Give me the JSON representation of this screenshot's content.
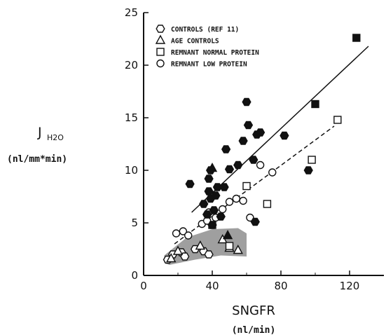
{
  "chart_data": {
    "type": "scatter",
    "title": "",
    "xlabel": "SNGFR",
    "xlabel_units": "(nl/min)",
    "ylabel_main": "J",
    "ylabel_sub": "H2O",
    "ylabel_units": "(nl/mm*min)",
    "xlim": [
      0,
      140
    ],
    "ylim": [
      0,
      25
    ],
    "x_ticks": [
      0,
      40,
      80,
      120
    ],
    "y_ticks": [
      0,
      5,
      10,
      15,
      20,
      25
    ],
    "grid": false,
    "legend_position": "top-left",
    "series": [
      {
        "name": "CONTROLS (REF 11)",
        "marker": "open-hexagon",
        "points": [
          [
            14,
            1.5
          ],
          [
            17,
            2.0
          ],
          [
            22,
            2.2
          ],
          [
            30,
            2.5
          ],
          [
            35,
            2.3
          ],
          [
            38,
            2.0
          ],
          [
            24,
            1.8
          ]
        ]
      },
      {
        "name": "AGE CONTROLS",
        "marker": "open-triangle",
        "points": [
          [
            20,
            2.3
          ],
          [
            33,
            2.8
          ],
          [
            46,
            3.4
          ],
          [
            50,
            2.6
          ],
          [
            55,
            2.4
          ],
          [
            16,
            1.6
          ]
        ]
      },
      {
        "name": "REMNANT NORMAL PROTEIN",
        "marker": "open-square",
        "points": [
          [
            40,
            4.8
          ],
          [
            50,
            2.8
          ],
          [
            60,
            8.5
          ],
          [
            72,
            6.8
          ],
          [
            98,
            11.0
          ],
          [
            113,
            14.8
          ]
        ]
      },
      {
        "name": "REMNANT LOW PROTEIN",
        "marker": "open-circle",
        "points": [
          [
            19,
            4.0
          ],
          [
            23,
            4.2
          ],
          [
            26,
            3.8
          ],
          [
            34,
            4.9
          ],
          [
            37,
            5.2
          ],
          [
            38,
            6.0
          ],
          [
            42,
            5.5
          ],
          [
            46,
            6.3
          ],
          [
            50,
            7.0
          ],
          [
            54,
            7.3
          ],
          [
            58,
            7.1
          ],
          [
            62,
            5.5
          ],
          [
            68,
            10.5
          ],
          [
            75,
            9.8
          ]
        ]
      },
      {
        "name": "",
        "marker": "filled-hexagon",
        "points": [
          [
            27,
            8.7
          ],
          [
            35,
            6.8
          ],
          [
            37,
            5.8
          ],
          [
            38,
            8.0
          ],
          [
            38,
            9.2
          ],
          [
            39,
            7.3
          ],
          [
            39,
            10.0
          ],
          [
            40,
            4.8
          ],
          [
            41,
            6.2
          ],
          [
            42,
            7.6
          ],
          [
            43,
            8.4
          ],
          [
            45,
            5.6
          ],
          [
            47,
            8.4
          ],
          [
            48,
            12.0
          ],
          [
            50,
            10.1
          ],
          [
            55,
            10.5
          ],
          [
            58,
            12.8
          ],
          [
            60,
            16.5
          ],
          [
            61,
            14.3
          ],
          [
            64,
            11.0
          ],
          [
            66,
            13.4
          ],
          [
            68,
            13.6
          ],
          [
            82,
            13.3
          ],
          [
            96,
            10.0
          ],
          [
            65,
            5.1
          ]
        ]
      },
      {
        "name": "",
        "marker": "filled-triangle",
        "points": [
          [
            40,
            10.2
          ],
          [
            49,
            3.8
          ]
        ]
      },
      {
        "name": "",
        "marker": "filled-square",
        "points": [
          [
            100,
            16.3
          ],
          [
            124,
            22.6
          ]
        ]
      }
    ],
    "regression_lines": [
      {
        "style": "solid",
        "from": [
          28,
          6.0
        ],
        "to": [
          131,
          21.8
        ]
      },
      {
        "style": "dashed",
        "from": [
          18,
          3.0
        ],
        "to": [
          111,
          14.2
        ]
      }
    ],
    "shaded_band": {
      "upper": [
        [
          12,
          1.9
        ],
        [
          25,
          3.6
        ],
        [
          40,
          4.4
        ],
        [
          55,
          4.5
        ],
        [
          60,
          4.0
        ]
      ],
      "lower": [
        [
          60,
          1.8
        ],
        [
          45,
          1.9
        ],
        [
          30,
          1.5
        ],
        [
          15,
          1.0
        ],
        [
          12,
          1.2
        ]
      ]
    }
  }
}
